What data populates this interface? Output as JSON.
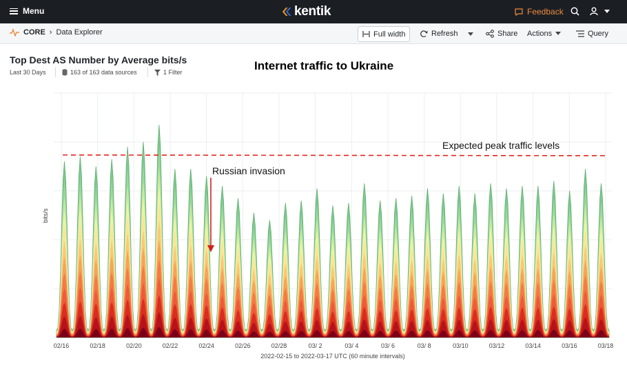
{
  "topbar": {
    "menu_label": "Menu",
    "logo_text": "kentik",
    "feedback_label": "Feedback",
    "icons": [
      "hamburger-icon",
      "search-icon",
      "user-icon",
      "caret-down-icon"
    ]
  },
  "subbar": {
    "breadcrumb_root": "CORE",
    "breadcrumb_page": "Data Explorer",
    "full_width_label": "Full width",
    "refresh_label": "Refresh",
    "share_label": "Share",
    "actions_label": "Actions",
    "query_label": "Query"
  },
  "panel": {
    "title": "Top Dest AS Number by Average bits/s",
    "range": "Last 30 Days",
    "sources": "163 of 163 data sources",
    "filter": "1 Filter"
  },
  "annotations": {
    "title": "Internet traffic to Ukraine",
    "peak_label": "Expected peak traffic levels",
    "invasion_label": "Russian invasion"
  },
  "colors": {
    "topbar_bg": "#1b1f24",
    "feedback": "#f08a3c",
    "peak_line": "#e2231a",
    "invasion_arrow": "#d0211a",
    "top_series": "#7fc98f"
  },
  "chart_data": {
    "type": "area",
    "stacked": true,
    "ylabel": "bits/s",
    "xlabel": "2022-02-15 to 2022-03-17 UTC (60 minute intervals)",
    "x_ticks": [
      "02/16",
      "02/18",
      "02/20",
      "02/22",
      "02/24",
      "02/26",
      "02/28",
      "03/ 2",
      "03/ 4",
      "03/ 6",
      "03/ 8",
      "03/10",
      "03/12",
      "03/14",
      "03/16",
      "03/18"
    ],
    "grid": true,
    "daily_peak_fraction": [
      0.72,
      0.74,
      0.7,
      0.73,
      0.78,
      0.8,
      0.87,
      0.69,
      0.69,
      0.66,
      0.62,
      0.57,
      0.51,
      0.48,
      0.55,
      0.56,
      0.61,
      0.54,
      0.55,
      0.63,
      0.56,
      0.57,
      0.58,
      0.61,
      0.59,
      0.62,
      0.59,
      0.63,
      0.61,
      0.62,
      0.62,
      0.64,
      0.6,
      0.69,
      0.63
    ]
  }
}
